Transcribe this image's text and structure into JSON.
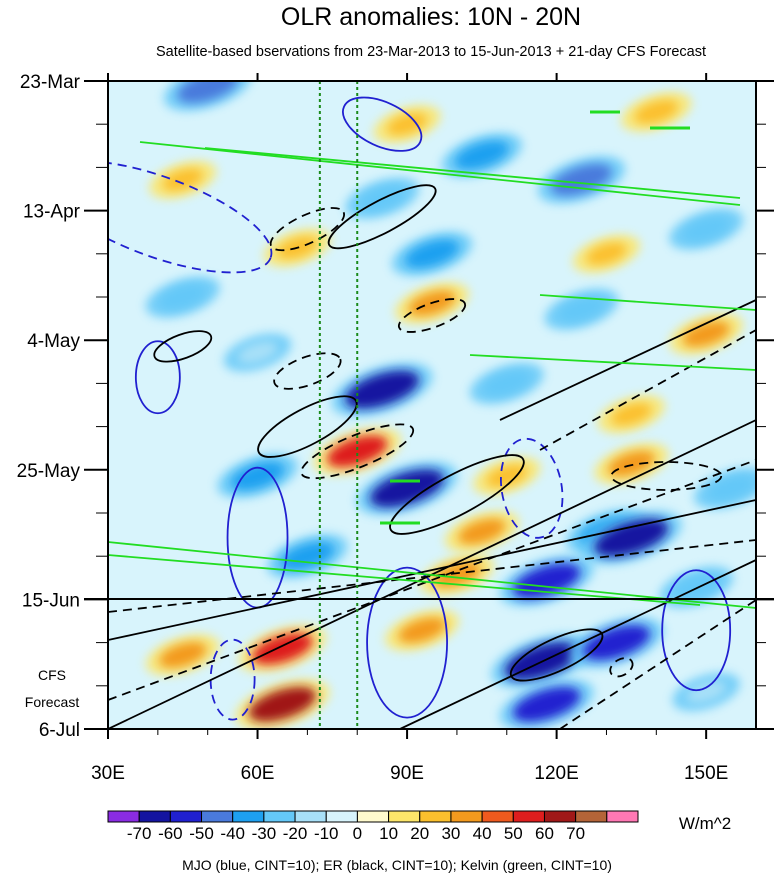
{
  "chart_data": {
    "type": "heatmap",
    "title": "OLR anomalies: 10N - 20N",
    "subtitle": "Satellite-based bservations from 23-Mar-2013 to 15-Jun-2013 + 21-day CFS Forecast",
    "x_axis": {
      "range": [
        30,
        160
      ],
      "ticks": [
        30,
        60,
        90,
        120,
        150
      ],
      "tick_labels": [
        "30E",
        "60E",
        "90E",
        "120E",
        "150E"
      ]
    },
    "y_axis": {
      "range": [
        "2013-03-23",
        "2013-07-06"
      ],
      "reversed": true,
      "ticks": [
        "2013-03-23",
        "2013-04-13",
        "2013-05-04",
        "2013-05-25",
        "2013-06-15",
        "2013-07-06"
      ],
      "tick_labels": [
        "23-Mar",
        "13-Apr",
        "4-May",
        "25-May",
        "15-Jun",
        "6-Jul"
      ]
    },
    "forecast_label": [
      "CFS",
      "Forecast"
    ],
    "observation_end": "2013-06-15",
    "reference_longitudes": [
      72.5,
      80
    ],
    "colorbar": {
      "unit": "W/m^2",
      "levels": [
        -70,
        -60,
        -50,
        -40,
        -30,
        -20,
        -10,
        0,
        10,
        20,
        30,
        40,
        50,
        60,
        70
      ],
      "labels": [
        "-70",
        "-60",
        "-50",
        "-40",
        "-30",
        "-20",
        "-10",
        "0",
        "10",
        "20",
        "30",
        "40",
        "50",
        "60",
        "70"
      ],
      "colors": [
        "#8a2be2",
        "#1414a0",
        "#2020d0",
        "#4a7adc",
        "#1ea0f0",
        "#64c8f8",
        "#a8e0f8",
        "#d8f4fc",
        "#fffacd",
        "#fde66a",
        "#fbc02d",
        "#f39a1e",
        "#ef5a1e",
        "#de1e1e",
        "#a01818",
        "#b46438",
        "#ff78b4"
      ]
    },
    "anomaly_blobs": [
      {
        "lon": 90,
        "date": "2013-03-30",
        "value": 20
      },
      {
        "lon": 140,
        "date": "2013-03-28",
        "value": 25
      },
      {
        "lon": 50,
        "date": "2013-03-24",
        "value": -50
      },
      {
        "lon": 45,
        "date": "2013-04-08",
        "value": 20
      },
      {
        "lon": 85,
        "date": "2013-04-11",
        "value": -30
      },
      {
        "lon": 105,
        "date": "2013-04-04",
        "value": -40
      },
      {
        "lon": 125,
        "date": "2013-04-08",
        "value": -50
      },
      {
        "lon": 150,
        "date": "2013-04-16",
        "value": -30
      },
      {
        "lon": 95,
        "date": "2013-04-20",
        "value": -40
      },
      {
        "lon": 68,
        "date": "2013-04-19",
        "value": 20
      },
      {
        "lon": 130,
        "date": "2013-04-20",
        "value": 20
      },
      {
        "lon": 45,
        "date": "2013-04-27",
        "value": -30
      },
      {
        "lon": 95,
        "date": "2013-04-28",
        "value": 30
      },
      {
        "lon": 125,
        "date": "2013-04-29",
        "value": -30
      },
      {
        "lon": 150,
        "date": "2013-05-03",
        "value": 30
      },
      {
        "lon": 60,
        "date": "2013-05-06",
        "value": -20
      },
      {
        "lon": 85,
        "date": "2013-05-12",
        "value": -70
      },
      {
        "lon": 110,
        "date": "2013-05-11",
        "value": -30
      },
      {
        "lon": 135,
        "date": "2013-05-16",
        "value": 20
      },
      {
        "lon": 80,
        "date": "2013-05-22",
        "value": 50
      },
      {
        "lon": 60,
        "date": "2013-05-26",
        "value": -40
      },
      {
        "lon": 90,
        "date": "2013-05-28",
        "value": -70
      },
      {
        "lon": 110,
        "date": "2013-05-26",
        "value": 20
      },
      {
        "lon": 135,
        "date": "2013-05-24",
        "value": 30
      },
      {
        "lon": 155,
        "date": "2013-05-28",
        "value": -30
      },
      {
        "lon": 105,
        "date": "2013-06-04",
        "value": 30
      },
      {
        "lon": 130,
        "date": "2013-06-04",
        "value": -40
      },
      {
        "lon": 135,
        "date": "2013-06-05",
        "value": -70
      },
      {
        "lon": 70,
        "date": "2013-06-08",
        "value": -40
      },
      {
        "lon": 100,
        "date": "2013-06-11",
        "value": 30
      },
      {
        "lon": 118,
        "date": "2013-06-12",
        "value": -60
      },
      {
        "lon": 148,
        "date": "2013-06-13",
        "value": -30
      },
      {
        "lon": 65,
        "date": "2013-06-23",
        "value": 50
      },
      {
        "lon": 45,
        "date": "2013-06-24",
        "value": 30
      },
      {
        "lon": 93,
        "date": "2013-06-20",
        "value": 30
      },
      {
        "lon": 117,
        "date": "2013-06-25",
        "value": -70
      },
      {
        "lon": 132,
        "date": "2013-06-22",
        "value": -60
      },
      {
        "lon": 65,
        "date": "2013-07-02",
        "value": 60
      },
      {
        "lon": 118,
        "date": "2013-07-02",
        "value": -60
      },
      {
        "lon": 150,
        "date": "2013-06-30",
        "value": -20
      }
    ],
    "contours": {
      "legend": "MJO (blue, CINT=10); ER (black, CINT=10); Kelvin (green, CINT=10)",
      "series": [
        {
          "name": "MJO",
          "color": "#2020d0"
        },
        {
          "name": "ER",
          "color": "#000000"
        },
        {
          "name": "Kelvin",
          "color": "#22dd22"
        }
      ]
    }
  }
}
